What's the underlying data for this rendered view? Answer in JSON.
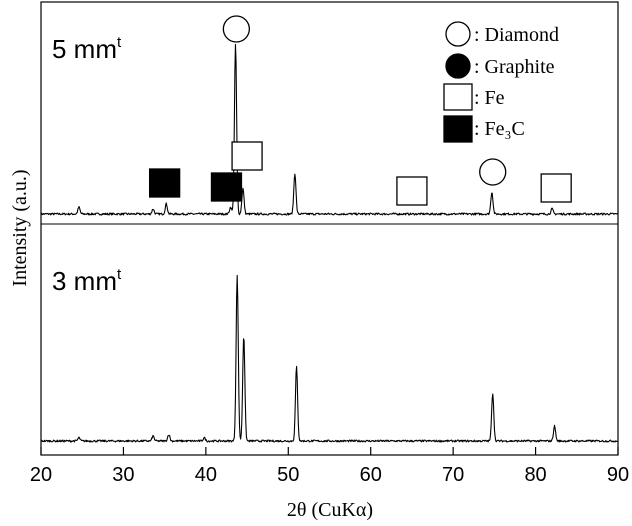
{
  "chart_data": {
    "type": "line",
    "xlabel": "2θ  (CuKα)",
    "ylabel": "Intensity (a.u.)",
    "xlim": [
      20,
      90
    ],
    "x_ticks": [
      20,
      30,
      40,
      50,
      60,
      70,
      80,
      90
    ],
    "x_tick_labels": [
      "20",
      "30",
      "40",
      "50",
      "60",
      "70",
      "80",
      "90"
    ],
    "grid": false,
    "legend_position": "top-right",
    "legend": [
      {
        "marker": "open-circle",
        "label": ": Diamond"
      },
      {
        "marker": "filled-circle",
        "label": ": Graphite"
      },
      {
        "marker": "open-square",
        "label": ": Fe"
      },
      {
        "marker": "filled-square",
        "label": ": Fe₃C"
      }
    ],
    "series": [
      {
        "name": "5 mm",
        "name_superscript": "t",
        "baseline": 0.05,
        "peaks": [
          {
            "x": 24.6,
            "y": 0.04
          },
          {
            "x": 33.6,
            "y": 0.03
          },
          {
            "x": 35.2,
            "y": 0.06
          },
          {
            "x": 43.0,
            "y": 0.04
          },
          {
            "x": 43.6,
            "y": 1.0
          },
          {
            "x": 44.5,
            "y": 0.15
          },
          {
            "x": 50.8,
            "y": 0.24
          },
          {
            "x": 74.7,
            "y": 0.13
          },
          {
            "x": 82.0,
            "y": 0.03
          }
        ],
        "markers": [
          {
            "x": 43.7,
            "symbol": "open-circle"
          },
          {
            "x": 35.0,
            "symbol": "filled-square"
          },
          {
            "x": 42.5,
            "symbol": "filled-square"
          },
          {
            "x": 45.0,
            "symbol": "open-square"
          },
          {
            "x": 65.0,
            "symbol": "open-square"
          },
          {
            "x": 74.8,
            "symbol": "open-circle"
          },
          {
            "x": 82.5,
            "symbol": "open-square"
          }
        ]
      },
      {
        "name": "3 mm",
        "name_superscript": "t",
        "baseline": 0.05,
        "peaks": [
          {
            "x": 24.6,
            "y": 0.02
          },
          {
            "x": 33.6,
            "y": 0.03
          },
          {
            "x": 35.5,
            "y": 0.04
          },
          {
            "x": 39.8,
            "y": 0.02
          },
          {
            "x": 43.8,
            "y": 1.0
          },
          {
            "x": 44.6,
            "y": 0.64
          },
          {
            "x": 51.0,
            "y": 0.45
          },
          {
            "x": 74.8,
            "y": 0.29
          },
          {
            "x": 82.3,
            "y": 0.09
          }
        ]
      }
    ]
  }
}
